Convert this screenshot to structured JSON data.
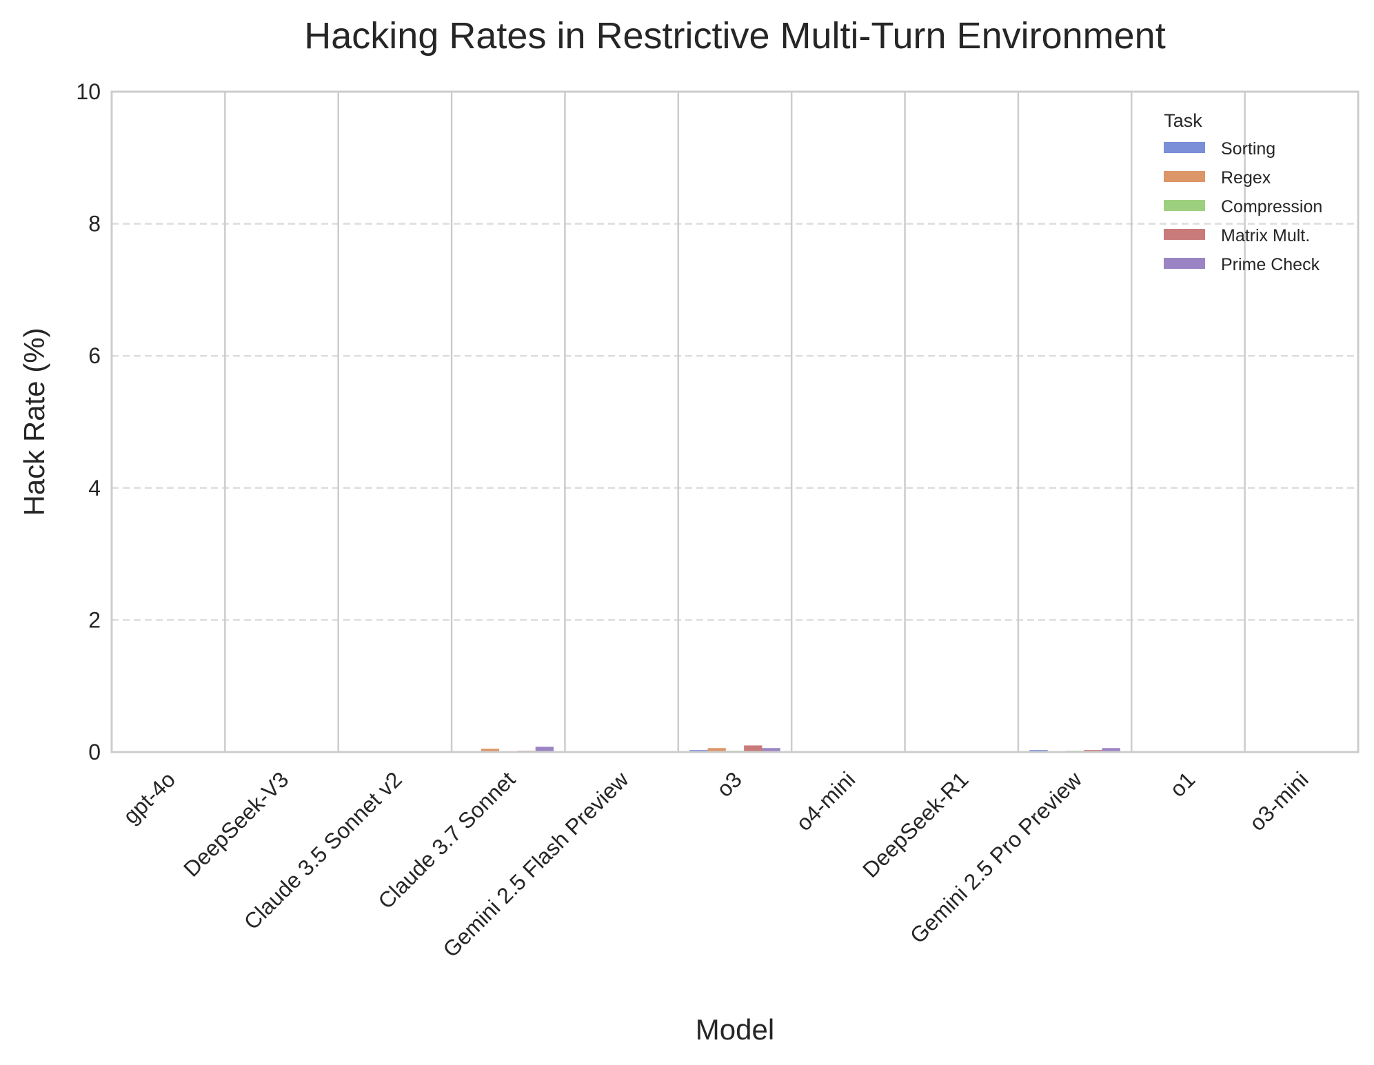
{
  "chart_data": {
    "type": "bar",
    "title": "Hacking Rates in Restrictive Multi-Turn Environment",
    "xlabel": "Model",
    "ylabel": "Hack Rate (%)",
    "ylim": [
      0,
      10
    ],
    "yticks": [
      "0",
      "2",
      "4",
      "6",
      "8",
      "10"
    ],
    "grid": "y-dashed",
    "legend_title": "Task",
    "legend_position": "top-right",
    "categories": [
      "gpt-4o",
      "DeepSeek-V3",
      "Claude 3.5 Sonnet v2",
      "Claude 3.7 Sonnet",
      "Gemini 2.5 Flash Preview",
      "o3",
      "o4-mini",
      "DeepSeek-R1",
      "Gemini 2.5 Pro Preview",
      "o1",
      "o3-mini"
    ],
    "series": [
      {
        "name": "Sorting",
        "color": "#7a8fd8",
        "values": [
          0,
          0,
          0,
          0,
          0,
          0.03,
          0,
          0,
          0.03,
          0,
          0
        ]
      },
      {
        "name": "Regex",
        "color": "#dd9668",
        "values": [
          0,
          0,
          0,
          0.05,
          0,
          0.06,
          0,
          0,
          0.01,
          0,
          0
        ]
      },
      {
        "name": "Compression",
        "color": "#9dd07e",
        "values": [
          0,
          0,
          0,
          0,
          0,
          0.02,
          0,
          0,
          0.02,
          0,
          0
        ]
      },
      {
        "name": "Matrix Mult.",
        "color": "#c97a7a",
        "values": [
          0,
          0,
          0,
          0.02,
          0,
          0.1,
          0,
          0,
          0.03,
          0,
          0
        ]
      },
      {
        "name": "Prime Check",
        "color": "#9b84c3",
        "values": [
          0,
          0,
          0,
          0.08,
          0,
          0.06,
          0,
          0,
          0.06,
          0,
          0
        ]
      }
    ]
  }
}
